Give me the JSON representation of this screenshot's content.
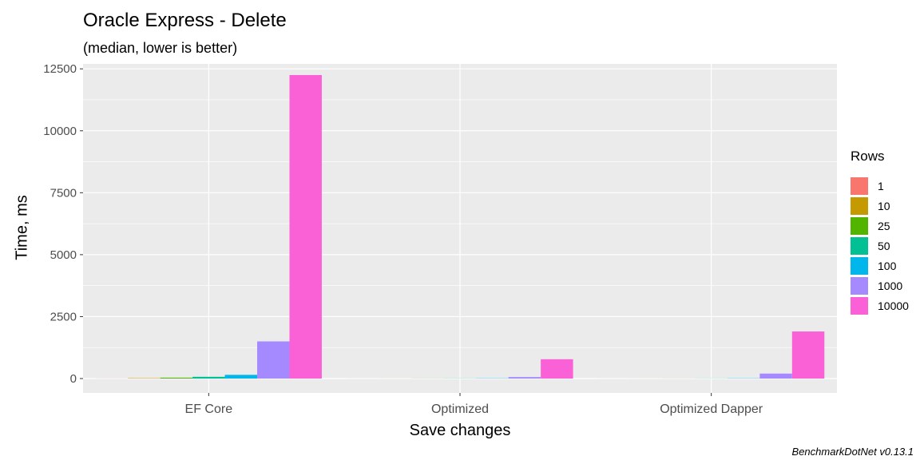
{
  "chart_data": {
    "type": "bar",
    "title": "Oracle Express - Delete",
    "subtitle": "(median, lower is better)",
    "xlabel": "Save changes",
    "ylabel": "Time, ms",
    "caption": "BenchmarkDotNet v0.13.1",
    "categories": [
      "EF Core",
      "Optimized",
      "Optimized Dapper"
    ],
    "ylim": [
      -580,
      12700
    ],
    "yticks": [
      0,
      2500,
      5000,
      7500,
      10000,
      12500
    ],
    "grid": true,
    "legend_title": "Rows",
    "legend_position": "right",
    "series": [
      {
        "name": "1",
        "color": "#F8766D",
        "values": [
          3,
          1,
          1
        ]
      },
      {
        "name": "10",
        "color": "#C49A00",
        "values": [
          15,
          2,
          2
        ]
      },
      {
        "name": "25",
        "color": "#53B400",
        "values": [
          35,
          4,
          3
        ]
      },
      {
        "name": "50",
        "color": "#00C094",
        "values": [
          70,
          6,
          5
        ]
      },
      {
        "name": "100",
        "color": "#00B6EB",
        "values": [
          150,
          10,
          10
        ]
      },
      {
        "name": "1000",
        "color": "#A58AFF",
        "values": [
          1500,
          60,
          200
        ]
      },
      {
        "name": "10000",
        "color": "#FB61D7",
        "values": [
          12250,
          780,
          1900
        ]
      }
    ]
  }
}
